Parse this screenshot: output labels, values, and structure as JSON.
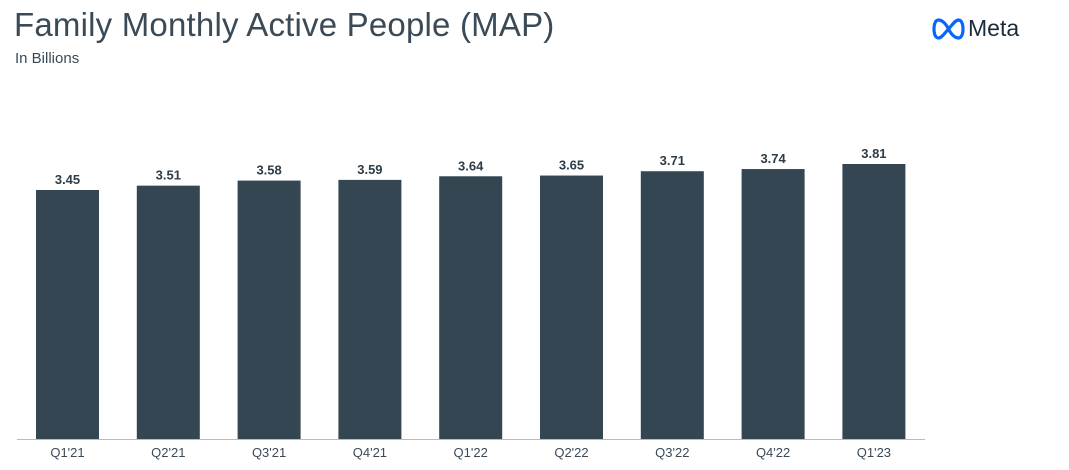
{
  "header": {
    "title": "Family Monthly Active People (MAP)",
    "subtitle": "In Billions",
    "brand": "Meta",
    "brand_icon": "meta-infinity-logo-icon",
    "brand_color": "#0866ff"
  },
  "chart_data": {
    "type": "bar",
    "title": "Family Monthly Active People (MAP)",
    "subtitle": "In Billions",
    "xlabel": "",
    "ylabel": "",
    "categories": [
      "Q1'21",
      "Q2'21",
      "Q3'21",
      "Q4'21",
      "Q1'22",
      "Q2'22",
      "Q3'22",
      "Q4'22",
      "Q1'23"
    ],
    "values": [
      3.45,
      3.51,
      3.58,
      3.59,
      3.64,
      3.65,
      3.71,
      3.74,
      3.81
    ],
    "value_labels": [
      "3.45",
      "3.51",
      "3.58",
      "3.59",
      "3.64",
      "3.65",
      "3.71",
      "3.74",
      "3.81"
    ],
    "ylim": [
      0,
      3.81
    ],
    "grid": false,
    "legend": "none",
    "bar_color": "#344652"
  }
}
